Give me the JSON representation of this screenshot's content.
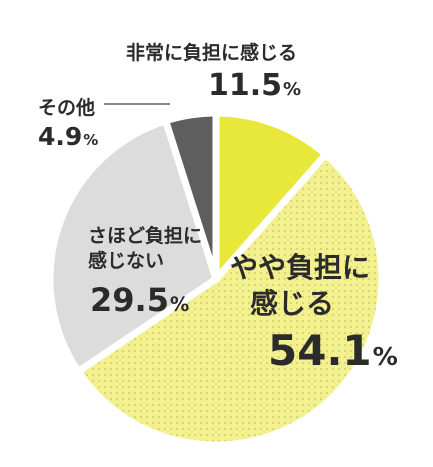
{
  "chart_data": {
    "type": "pie",
    "slices": [
      {
        "label": "非常に負担に感じる",
        "value": 11.5,
        "value_label": "11.5",
        "color": "#e8e83a",
        "pattern": "none"
      },
      {
        "label": "やや負担に感じる",
        "value": 54.1,
        "value_label": "54.1",
        "color": "#f3f08e",
        "pattern": "dots"
      },
      {
        "label": "さほど負担に感じない",
        "value": 29.5,
        "value_label": "29.5",
        "color": "#dcdcdc",
        "pattern": "none"
      },
      {
        "label": "その他",
        "value": 4.9,
        "value_label": "4.9",
        "color": "#5e5e5e",
        "pattern": "none"
      }
    ],
    "unit": "%",
    "title": ""
  },
  "labels": {
    "s1_name": "非常に負担に感じる",
    "s2_name_line1": "やや負担に",
    "s2_name_line2": "感じる",
    "s3_name_line1": "さほど負担に",
    "s3_name_line2": "感じない",
    "s4_name": "その他"
  }
}
